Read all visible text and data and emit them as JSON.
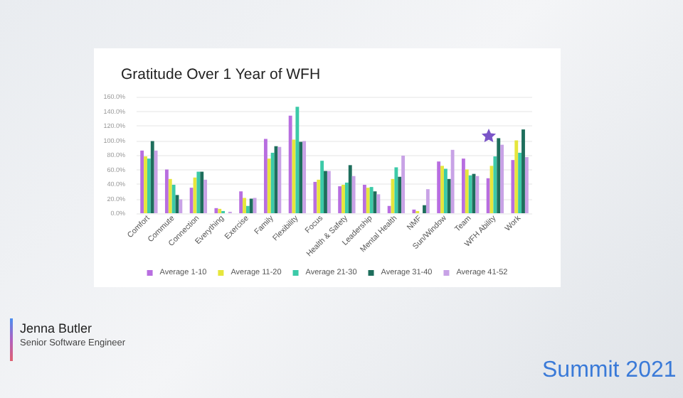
{
  "chart_data": {
    "type": "bar",
    "title": "Gratitude Over 1 Year of WFH",
    "categories": [
      "Comfort",
      "Commute",
      "Connection",
      "Everything",
      "Exercise",
      "Family",
      "Flexibility",
      "Focus",
      "Health & Safety",
      "Leadership",
      "Mental Health",
      "NMF",
      "Sun/Window",
      "Team",
      "WFH Ability",
      "Work"
    ],
    "series": [
      {
        "name": "Average 1-10",
        "color": "#b86ee0",
        "values": [
          86,
          60,
          35,
          7,
          30,
          102,
          134,
          43,
          37,
          39,
          10,
          5,
          71,
          75,
          48,
          73
        ]
      },
      {
        "name": "Average 11-20",
        "color": "#e6e63c",
        "values": [
          78,
          47,
          49,
          6,
          21,
          75,
          101,
          46,
          39,
          35,
          47,
          3,
          65,
          60,
          65,
          100
        ]
      },
      {
        "name": "Average 21-30",
        "color": "#3ccaa8",
        "values": [
          75,
          39,
          57,
          3,
          10,
          83,
          146,
          72,
          42,
          36,
          63,
          null,
          61,
          52,
          78,
          83
        ]
      },
      {
        "name": "Average 31-40",
        "color": "#1e6e5c",
        "values": [
          99,
          25,
          57,
          null,
          20,
          92,
          98,
          58,
          66,
          30,
          50,
          11,
          47,
          54,
          103,
          115
        ]
      },
      {
        "name": "Average 41-52",
        "color": "#c8a2e6",
        "values": [
          86,
          19,
          46,
          2,
          21,
          91,
          99,
          58,
          51,
          26,
          79,
          33,
          87,
          51,
          94,
          77
        ]
      }
    ],
    "ylim": [
      0,
      160
    ],
    "yticks": [
      {
        "value": 0,
        "label": "0.0%"
      },
      {
        "value": 20,
        "label": "20.0%"
      },
      {
        "value": 40,
        "label": "40.0%"
      },
      {
        "value": 60,
        "label": "60.0%"
      },
      {
        "value": 80,
        "label": "80.0%"
      },
      {
        "value": 100,
        "label": "100.0%"
      },
      {
        "value": 120,
        "label": "120.0%"
      },
      {
        "value": 140,
        "label": "140.0%"
      },
      {
        "value": 160,
        "label": "160.0%"
      }
    ],
    "grid": "y",
    "legend": "bottom",
    "annotations": [
      "Jenna Butler",
      "Senior Software Engineer",
      "Summit 2021"
    ]
  }
}
